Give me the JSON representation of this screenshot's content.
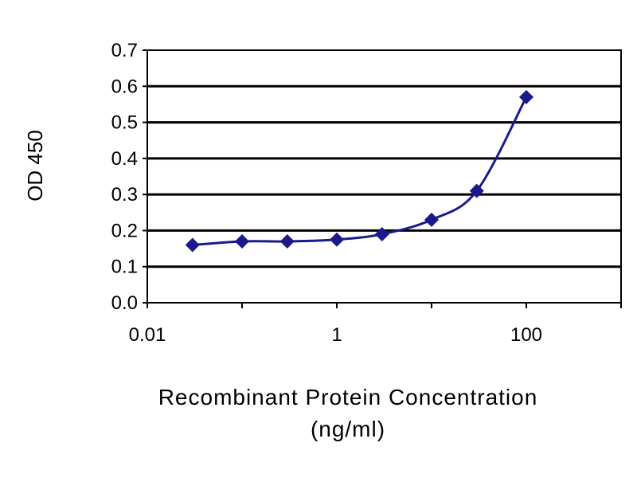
{
  "chart_data": {
    "type": "line",
    "title": "",
    "xlabel": "Recombinant Protein Concentration",
    "xlabel_unit": "(ng/ml)",
    "ylabel": "OD 450",
    "x_scale": "log",
    "xlim": [
      0.01,
      1000
    ],
    "ylim": [
      0.0,
      0.7
    ],
    "x_ticks": [
      0.01,
      1,
      100
    ],
    "x_tick_labels": [
      "0.01",
      "1",
      "100"
    ],
    "y_ticks": [
      0.0,
      0.1,
      0.2,
      0.3,
      0.4,
      0.5,
      0.6,
      0.7
    ],
    "y_tick_labels": [
      "0.0",
      "0.1",
      "0.2",
      "0.3",
      "0.4",
      "0.5",
      "0.6",
      "0.7"
    ],
    "grid": "horizontal",
    "legend": "none",
    "colors": {
      "series": "#1a1a8c",
      "grid": "#000000",
      "plot_bg": "#ffffff"
    },
    "series": [
      {
        "x": [
          0.03,
          0.1,
          0.3,
          1,
          3,
          10,
          30,
          100
        ],
        "y": [
          0.16,
          0.17,
          0.17,
          0.175,
          0.19,
          0.23,
          0.31,
          0.57
        ]
      }
    ]
  }
}
